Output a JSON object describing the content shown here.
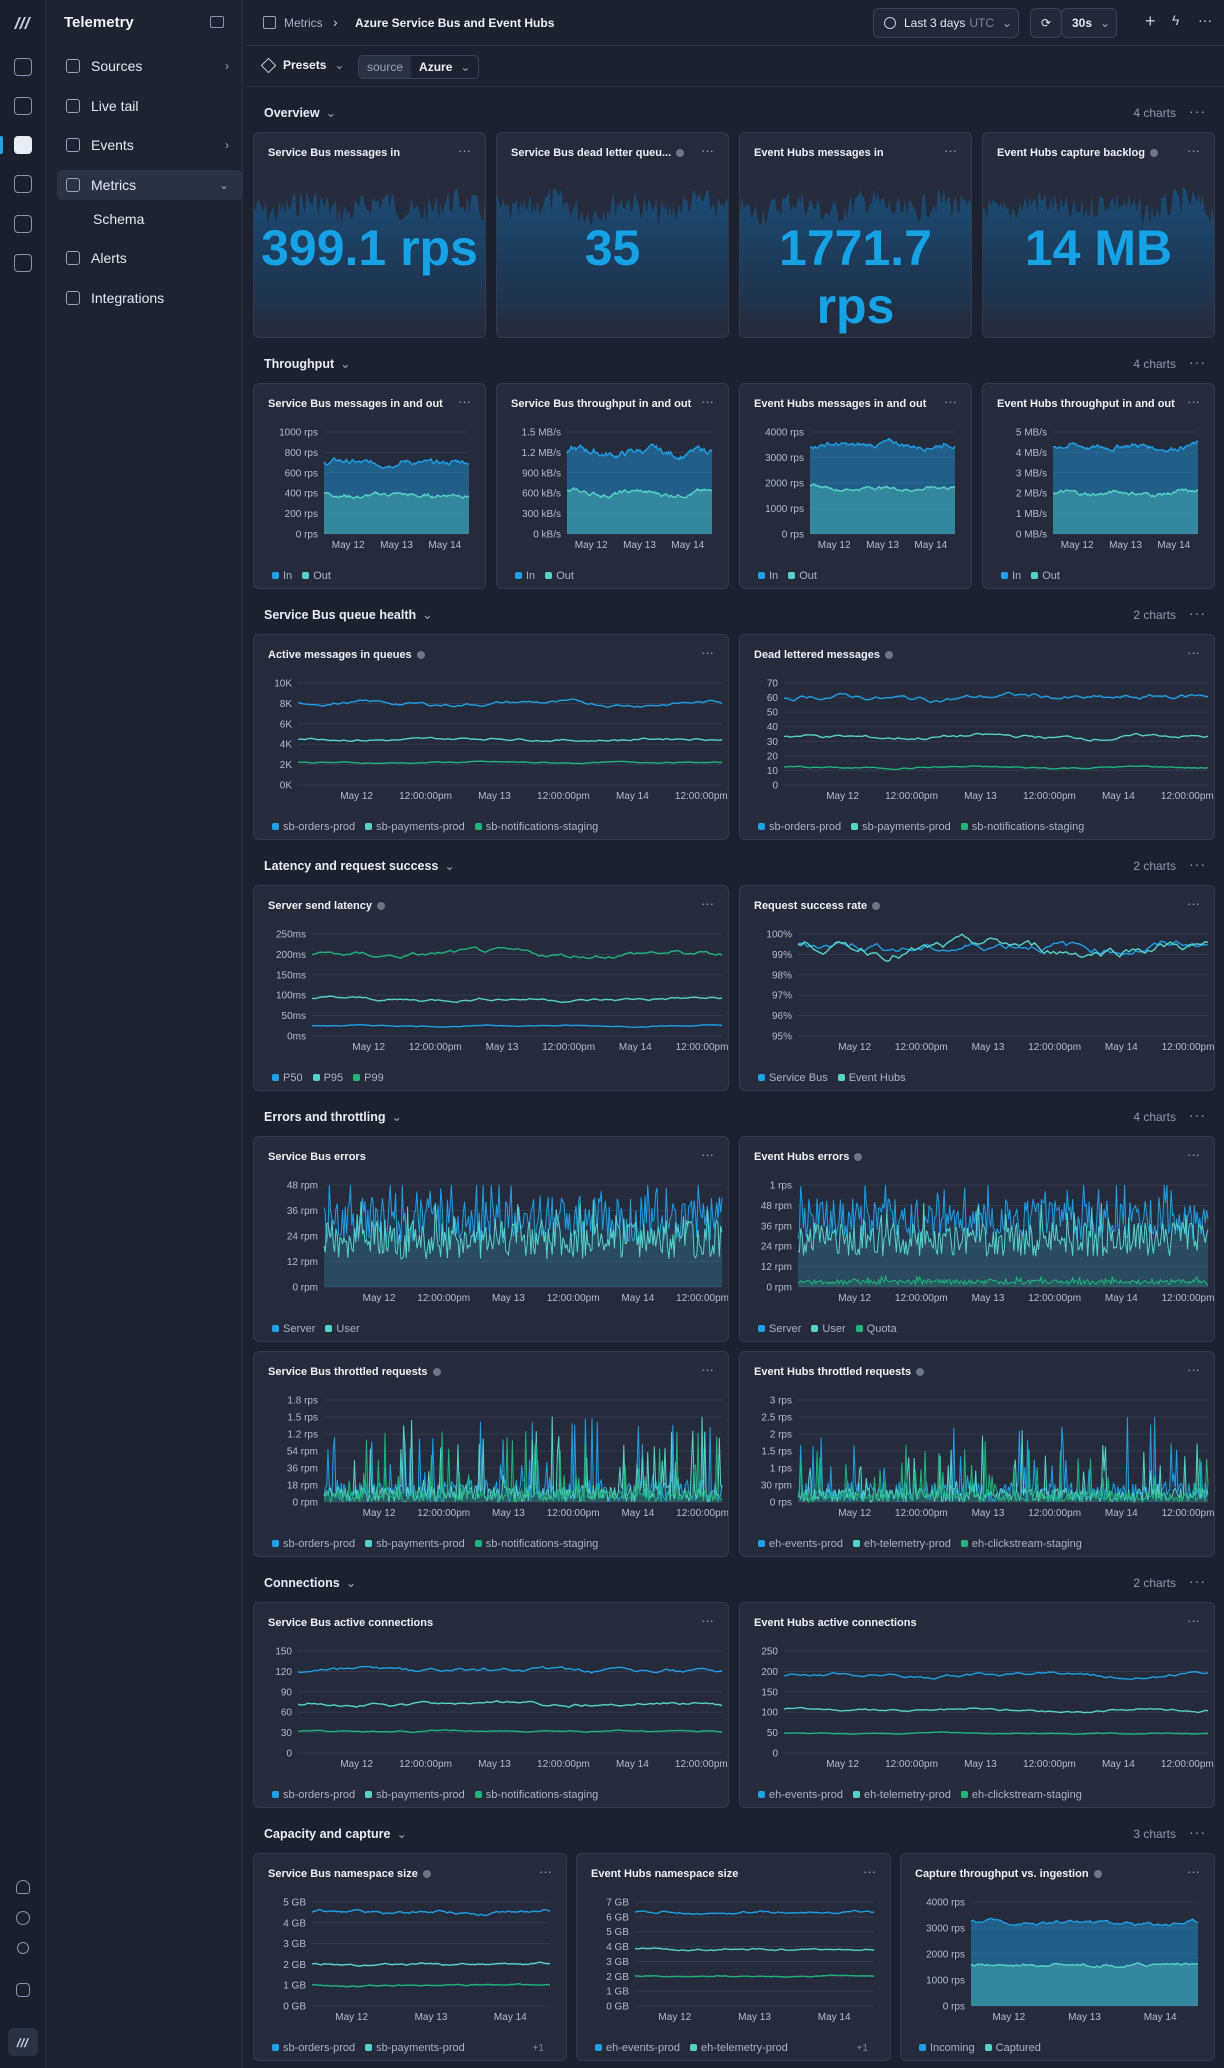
{
  "app": {
    "title": "Telemetry"
  },
  "nav": {
    "items": [
      {
        "label": "Sources",
        "chevron": "›"
      },
      {
        "label": "Live tail"
      },
      {
        "label": "Events",
        "chevron": "›"
      },
      {
        "label": "Metrics",
        "chevron": "⌄"
      },
      {
        "label": "Schema"
      },
      {
        "label": "Alerts"
      },
      {
        "label": "Integrations"
      }
    ]
  },
  "header": {
    "crumb1": "Metrics",
    "sep": "›",
    "crumb2": "Azure Service Bus and Event Hubs",
    "range": "Last 3 days",
    "tz": "UTC",
    "refresh": "30s"
  },
  "filters": {
    "presets": "Presets",
    "key": "source",
    "value": "Azure"
  },
  "colors": {
    "c1": "#1e9fe6",
    "c2": "#56d3c7",
    "c3": "#1fb57a"
  },
  "sections": [
    {
      "title": "Overview",
      "count": "4 charts"
    },
    {
      "title": "Throughput",
      "count": "4 charts"
    },
    {
      "title": "Service Bus queue health",
      "count": "2 charts"
    },
    {
      "title": "Latency and request success",
      "count": "2 charts"
    },
    {
      "title": "Errors and throttling",
      "count": "4 charts"
    },
    {
      "title": "Connections",
      "count": "2 charts"
    },
    {
      "title": "Capacity and capture",
      "count": "3 charts"
    }
  ],
  "chart_data": [
    {
      "type": "area",
      "title": "Service Bus messages in",
      "value": "399.1 rps"
    },
    {
      "type": "area",
      "title": "Service Bus dead letter queu...",
      "value": "35"
    },
    {
      "type": "area",
      "title": "Event Hubs messages in",
      "value": "1771.7 rps"
    },
    {
      "type": "area",
      "title": "Event Hubs capture backlog",
      "value": "14 MB"
    },
    {
      "type": "area",
      "title": "Service Bus messages in and out",
      "yticks": [
        "1000 rps",
        "800 rps",
        "600 rps",
        "400 rps",
        "200 rps",
        "0 rps"
      ],
      "ylim": [
        0,
        1000
      ],
      "xticks": [
        "May 12",
        "May 13",
        "May 14"
      ],
      "series": [
        {
          "name": "In",
          "level": 700,
          "noise": 40
        },
        {
          "name": "Out",
          "level": 380,
          "noise": 30
        }
      ]
    },
    {
      "type": "area",
      "title": "Service Bus throughput in and out",
      "yticks": [
        "1.5 MB/s",
        "1.2 MB/s",
        "900 kB/s",
        "600 kB/s",
        "300 kB/s",
        "0 kB/s"
      ],
      "ylim": [
        0,
        1500
      ],
      "xticks": [
        "May 12",
        "May 13",
        "May 14"
      ],
      "series": [
        {
          "name": "In",
          "level": 1200,
          "noise": 80
        },
        {
          "name": "Out",
          "level": 600,
          "noise": 50
        }
      ]
    },
    {
      "type": "area",
      "title": "Event Hubs messages in and out",
      "yticks": [
        "4000 rps",
        "3000 rps",
        "2000 rps",
        "1000 rps",
        "0 rps"
      ],
      "ylim": [
        0,
        4000
      ],
      "xticks": [
        "May 12",
        "May 13",
        "May 14"
      ],
      "series": [
        {
          "name": "In",
          "level": 3500,
          "noise": 150
        },
        {
          "name": "Out",
          "level": 1800,
          "noise": 100
        }
      ]
    },
    {
      "type": "area",
      "title": "Event Hubs throughput in and out",
      "yticks": [
        "5 MB/s",
        "4 MB/s",
        "3 MB/s",
        "2 MB/s",
        "1 MB/s",
        "0 MB/s"
      ],
      "ylim": [
        0,
        5
      ],
      "xticks": [
        "May 12",
        "May 13",
        "May 14"
      ],
      "series": [
        {
          "name": "In",
          "level": 4.3,
          "noise": 0.2
        },
        {
          "name": "Out",
          "level": 2,
          "noise": 0.15
        }
      ]
    },
    {
      "type": "line",
      "title": "Active messages in queues",
      "info": true,
      "yticks": [
        "10K",
        "8K",
        "6K",
        "4K",
        "2K",
        "0K"
      ],
      "ylim": [
        0,
        10000
      ],
      "xticks": [
        "May 12",
        "12:00:00pm",
        "May 13",
        "12:00:00pm",
        "May 14",
        "12:00:00pm"
      ],
      "series": [
        {
          "name": "sb-orders-prod",
          "level": 8000,
          "noise": 300
        },
        {
          "name": "sb-payments-prod",
          "level": 4500,
          "noise": 200
        },
        {
          "name": "sb-notifications-staging",
          "level": 2200,
          "noise": 100
        }
      ]
    },
    {
      "type": "line",
      "title": "Dead lettered messages",
      "info": true,
      "yticks": [
        "70",
        "60",
        "50",
        "40",
        "30",
        "20",
        "10",
        "0"
      ],
      "ylim": [
        0,
        70
      ],
      "xticks": [
        "May 12",
        "12:00:00pm",
        "May 13",
        "12:00:00pm",
        "May 14",
        "12:00:00pm"
      ],
      "series": [
        {
          "name": "sb-orders-prod",
          "level": 60,
          "noise": 3
        },
        {
          "name": "sb-payments-prod",
          "level": 33,
          "noise": 2
        },
        {
          "name": "sb-notifications-staging",
          "level": 12,
          "noise": 1
        }
      ]
    },
    {
      "type": "line",
      "title": "Server send latency",
      "info": true,
      "yticks": [
        "250ms",
        "200ms",
        "150ms",
        "100ms",
        "50ms",
        "0ms"
      ],
      "ylim": [
        0,
        250
      ],
      "xticks": [
        "May 12",
        "12:00:00pm",
        "May 13",
        "12:00:00pm",
        "May 14",
        "12:00:00pm"
      ],
      "series": [
        {
          "name": "P50",
          "level": 25,
          "noise": 2
        },
        {
          "name": "P95",
          "level": 90,
          "noise": 6
        },
        {
          "name": "P99",
          "level": 200,
          "noise": 10
        }
      ]
    },
    {
      "type": "line",
      "title": "Request success rate",
      "info": true,
      "yticks": [
        "100%",
        "99%",
        "98%",
        "97%",
        "96%",
        "95%"
      ],
      "ylim": [
        95,
        100
      ],
      "xticks": [
        "May 12",
        "12:00:00pm",
        "May 13",
        "12:00:00pm",
        "May 14",
        "12:00:00pm"
      ],
      "series": [
        {
          "name": "Service Bus",
          "level": 99.4,
          "noise": 0.35
        },
        {
          "name": "Event Hubs",
          "level": 99.3,
          "noise": 0.4
        }
      ]
    },
    {
      "type": "spiky",
      "title": "Service Bus errors",
      "yticks": [
        "48 rpm",
        "36 rpm",
        "24 rpm",
        "12 rpm",
        "0 rpm"
      ],
      "ylim": [
        0,
        52
      ],
      "xticks": [
        "May 12",
        "12:00:00pm",
        "May 13",
        "12:00:00pm",
        "May 14",
        "12:00:00pm"
      ],
      "series": [
        {
          "name": "Server",
          "level": 34,
          "noise": 12
        },
        {
          "name": "User",
          "level": 24,
          "noise": 10
        }
      ]
    },
    {
      "type": "spiky",
      "title": "Event Hubs errors",
      "info": true,
      "yticks": [
        "1 rps",
        "48 rpm",
        "36 rpm",
        "24 rpm",
        "12 rpm",
        "0 rpm"
      ],
      "ylim": [
        0,
        60
      ],
      "xticks": [
        "May 12",
        "12:00:00pm",
        "May 13",
        "12:00:00pm",
        "May 14",
        "12:00:00pm"
      ],
      "series": [
        {
          "name": "Server",
          "level": 40,
          "noise": 12
        },
        {
          "name": "User",
          "level": 28,
          "noise": 10
        },
        {
          "name": "Quota",
          "level": 3,
          "noise": 1.5
        }
      ]
    },
    {
      "type": "spiky",
      "title": "Service Bus throttled requests",
      "info": true,
      "yticks": [
        "1.8 rps",
        "1.5 rps",
        "1.2 rps",
        "54 rpm",
        "36 rpm",
        "18 rpm",
        "0 rpm"
      ],
      "ylim": [
        0,
        1.8
      ],
      "xticks": [
        "May 12",
        "12:00:00pm",
        "May 13",
        "12:00:00pm",
        "May 14",
        "12:00:00pm"
      ],
      "series": [
        {
          "name": "sb-orders-prod",
          "level": 0.4,
          "noise": 0.5
        },
        {
          "name": "sb-payments-prod",
          "level": 0.3,
          "noise": 0.45
        },
        {
          "name": "sb-notifications-staging",
          "level": 0.2,
          "noise": 0.4
        }
      ]
    },
    {
      "type": "spiky",
      "title": "Event Hubs throttled requests",
      "info": true,
      "yticks": [
        "3 rps",
        "2.5 rps",
        "2 rps",
        "1.5 rps",
        "1 rps",
        "30 rpm",
        "0 rps"
      ],
      "ylim": [
        0,
        3
      ],
      "xticks": [
        "May 12",
        "12:00:00pm",
        "May 13",
        "12:00:00pm",
        "May 14",
        "12:00:00pm"
      ],
      "series": [
        {
          "name": "eh-events-prod",
          "level": 0.6,
          "noise": 0.8
        },
        {
          "name": "eh-telemetry-prod",
          "level": 0.4,
          "noise": 0.6
        },
        {
          "name": "eh-clickstream-staging",
          "level": 0.3,
          "noise": 0.5
        }
      ]
    },
    {
      "type": "line",
      "title": "Service Bus active connections",
      "yticks": [
        "150",
        "120",
        "90",
        "60",
        "30",
        "0"
      ],
      "ylim": [
        0,
        150
      ],
      "xticks": [
        "May 12",
        "12:00:00pm",
        "May 13",
        "12:00:00pm",
        "May 14",
        "12:00:00pm"
      ],
      "series": [
        {
          "name": "sb-orders-prod",
          "level": 120,
          "noise": 5
        },
        {
          "name": "sb-payments-prod",
          "level": 72,
          "noise": 4
        },
        {
          "name": "sb-notifications-staging",
          "level": 32,
          "noise": 2
        }
      ]
    },
    {
      "type": "line",
      "title": "Event Hubs active connections",
      "yticks": [
        "250",
        "200",
        "150",
        "100",
        "50",
        "0"
      ],
      "ylim": [
        0,
        250
      ],
      "xticks": [
        "May 12",
        "12:00:00pm",
        "May 13",
        "12:00:00pm",
        "May 14",
        "12:00:00pm"
      ],
      "series": [
        {
          "name": "eh-events-prod",
          "level": 190,
          "noise": 7
        },
        {
          "name": "eh-telemetry-prod",
          "level": 105,
          "noise": 5
        },
        {
          "name": "eh-clickstream-staging",
          "level": 48,
          "noise": 2
        }
      ]
    },
    {
      "type": "line",
      "title": "Service Bus namespace size",
      "info": true,
      "yticks": [
        "5 GB",
        "4 GB",
        "3 GB",
        "2 GB",
        "1 GB",
        "0 GB"
      ],
      "ylim": [
        0,
        5
      ],
      "xticks": [
        "May 12",
        "May 13",
        "May 14"
      ],
      "series": [
        {
          "name": "sb-orders-prod",
          "level": 4.5,
          "noise": 0.1
        },
        {
          "name": "sb-payments-prod",
          "level": 2,
          "noise": 0.07
        },
        {
          "name": "",
          "level": 1,
          "noise": 0.05
        }
      ],
      "more": "+1"
    },
    {
      "type": "line",
      "title": "Event Hubs namespace size",
      "yticks": [
        "7 GB",
        "6 GB",
        "5 GB",
        "4 GB",
        "3 GB",
        "2 GB",
        "1 GB",
        "0 GB"
      ],
      "ylim": [
        0,
        7
      ],
      "xticks": [
        "May 12",
        "May 13",
        "May 14"
      ],
      "series": [
        {
          "name": "eh-events-prod",
          "level": 6.3,
          "noise": 0.12
        },
        {
          "name": "eh-telemetry-prod",
          "level": 3.8,
          "noise": 0.08
        },
        {
          "name": "",
          "level": 2,
          "noise": 0.05
        }
      ],
      "more": "+1"
    },
    {
      "type": "area",
      "title": "Capture throughput vs. ingestion",
      "info": true,
      "yticks": [
        "4000 rps",
        "3000 rps",
        "2000 rps",
        "1000 rps",
        "0 rps"
      ],
      "ylim": [
        0,
        4000
      ],
      "xticks": [
        "May 12",
        "May 13",
        "May 14"
      ],
      "series": [
        {
          "name": "Incoming",
          "level": 3200,
          "noise": 120
        },
        {
          "name": "Captured",
          "level": 1600,
          "noise": 100
        }
      ]
    }
  ]
}
